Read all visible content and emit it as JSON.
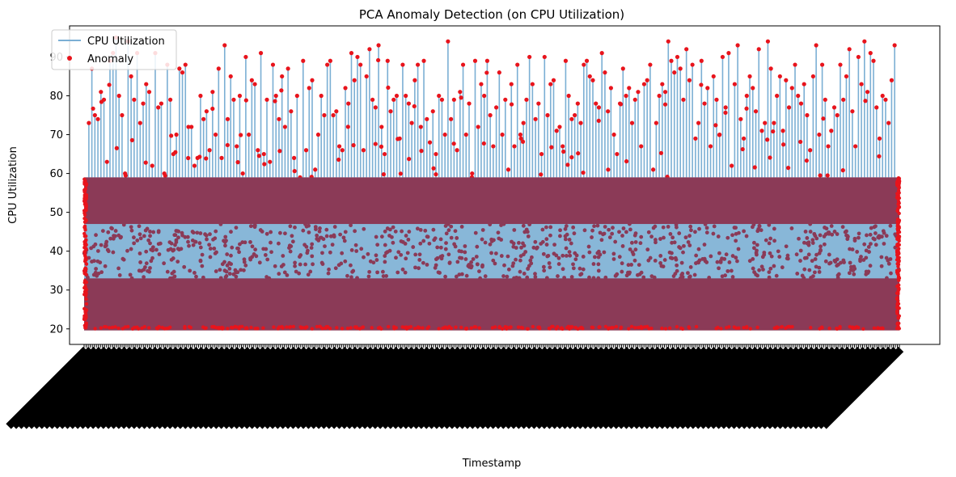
{
  "chart_data": {
    "type": "line",
    "title": "PCA Anomaly Detection (on CPU Utilization)",
    "xlabel": "Timestamp",
    "ylabel": "CPU Utilization",
    "ylim": [
      16,
      98
    ],
    "y_ticks": [
      20,
      30,
      40,
      50,
      60,
      70,
      80,
      90
    ],
    "grid": false,
    "legend_position": "top-left",
    "series": [
      {
        "name": "CPU Utilization",
        "kind": "line",
        "color": "#7bafd4",
        "band_low": 20,
        "band_high": 59,
        "spike_peaks": [
          73,
          87,
          75,
          74,
          81,
          79,
          63,
          89,
          91,
          95,
          80,
          75,
          60,
          94,
          85,
          79,
          91,
          73,
          78,
          83,
          81,
          62,
          91,
          77,
          78,
          60,
          88,
          79,
          65,
          70,
          87,
          86,
          88,
          72,
          72,
          62,
          64,
          80,
          74,
          76,
          66,
          81,
          70,
          87,
          64,
          93,
          74,
          85,
          79,
          67,
          80,
          60,
          90,
          70,
          84,
          83,
          66,
          91,
          65,
          79,
          63,
          88,
          80,
          74,
          85,
          72,
          87,
          76,
          64,
          80,
          59,
          89,
          66,
          82,
          84,
          61,
          70,
          80,
          75,
          88,
          89,
          75,
          76,
          67,
          66,
          82,
          78,
          91,
          84,
          90,
          88,
          66,
          85,
          92,
          79,
          77,
          93,
          72,
          65,
          89,
          76,
          79,
          80,
          69,
          88,
          80,
          78,
          73,
          84,
          88,
          72,
          89,
          74,
          68,
          76,
          65,
          80,
          79,
          70,
          94,
          74,
          79,
          66,
          81,
          88,
          70,
          78,
          60,
          89,
          72,
          83,
          80,
          89,
          75,
          67,
          77,
          86,
          70,
          79,
          61,
          83,
          67,
          88,
          70,
          73,
          79,
          90,
          83,
          74,
          78,
          65,
          90,
          75,
          83,
          84,
          71,
          72,
          67,
          89,
          80,
          74,
          75,
          78,
          73,
          88,
          89,
          85,
          84,
          78,
          77,
          91,
          86,
          76,
          82,
          70,
          65,
          78,
          87,
          80,
          82,
          73,
          79,
          81,
          67,
          83,
          84,
          88,
          61,
          73,
          80,
          83,
          81,
          94,
          89,
          86,
          90,
          87,
          79,
          92,
          84,
          88,
          69,
          73,
          89,
          78,
          82,
          67,
          85,
          79,
          70,
          90,
          77,
          91,
          62,
          83,
          93,
          74,
          69,
          80,
          85,
          82,
          76,
          92,
          71,
          73,
          94,
          87,
          73,
          80,
          85,
          71,
          84,
          77,
          82,
          88,
          80,
          78,
          83,
          75,
          66,
          85,
          93,
          70,
          88,
          79,
          67,
          71,
          77,
          75,
          88,
          79,
          85,
          92,
          76,
          67,
          90,
          83,
          94,
          81,
          91,
          89,
          77,
          69,
          80,
          79,
          73,
          84,
          93
        ]
      },
      {
        "name": "Anomaly",
        "kind": "scatter",
        "color": "#e8141c",
        "overlap_color": "#8b3a57",
        "y_range": [
          20,
          94
        ]
      }
    ]
  }
}
